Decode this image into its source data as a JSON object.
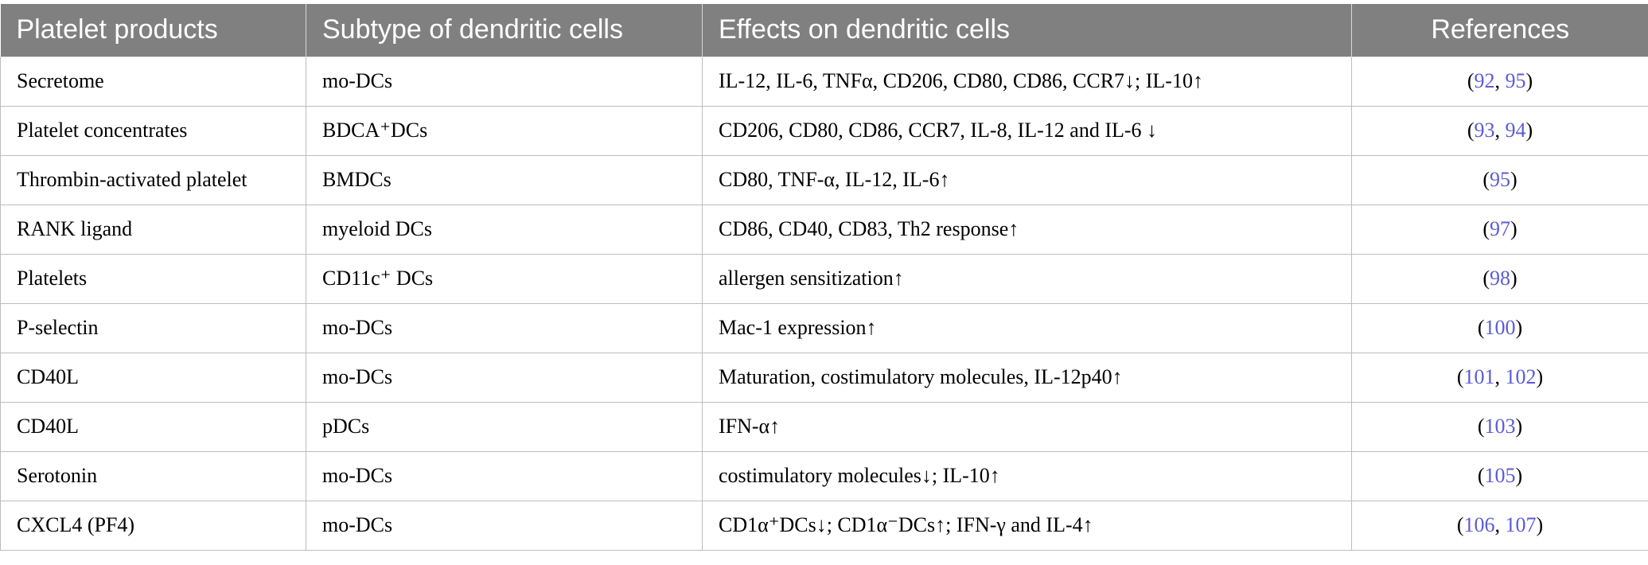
{
  "table": {
    "headers": [
      "Platelet products",
      "Subtype of dendritic cells",
      "Effects on dendritic cells",
      "References"
    ],
    "rows": [
      {
        "product": "Secretome",
        "subtype": "mo-DCs",
        "effects": "IL-12, IL-6, TNFα, CD206, CD80, CD86, CCR7↓; IL-10↑",
        "refs": [
          "92",
          "95"
        ]
      },
      {
        "product": "Platelet concentrates",
        "subtype": "BDCA⁺DCs",
        "effects": "CD206, CD80, CD86, CCR7, IL-8, IL-12 and IL-6 ↓",
        "refs": [
          "93",
          "94"
        ]
      },
      {
        "product": "Thrombin-activated platelet",
        "subtype": "BMDCs",
        "effects": "CD80, TNF-α, IL-12, IL-6↑",
        "refs": [
          "95"
        ]
      },
      {
        "product": "RANK ligand",
        "subtype": "myeloid DCs",
        "effects": "CD86, CD40, CD83, Th2 response↑",
        "refs": [
          "97"
        ]
      },
      {
        "product": "Platelets",
        "subtype": "CD11c⁺ DCs",
        "effects": "allergen sensitization↑",
        "refs": [
          "98"
        ]
      },
      {
        "product": "P-selectin",
        "subtype": "mo-DCs",
        "effects": "Mac-1 expression↑",
        "refs": [
          "100"
        ]
      },
      {
        "product": "CD40L",
        "subtype": "mo-DCs",
        "effects": "Maturation, costimulatory molecules, IL-12p40↑",
        "refs": [
          "101",
          "102"
        ]
      },
      {
        "product": "CD40L",
        "subtype": "pDCs",
        "effects": "IFN-α↑",
        "refs": [
          "103"
        ]
      },
      {
        "product": "Serotonin",
        "subtype": "mo-DCs",
        "effects": "costimulatory molecules↓; IL-10↑",
        "refs": [
          "105"
        ]
      },
      {
        "product": "CXCL4 (PF4)",
        "subtype": "mo-DCs",
        "effects": "CD1α⁺DCs↓; CD1α⁻DCs↑; IFN-γ and IL-4↑",
        "refs": [
          "106",
          "107"
        ]
      }
    ]
  },
  "colors": {
    "header_bg": "#808080",
    "header_text": "#ffffff",
    "link": "#5b5bd6",
    "border": "#bdbdbd"
  }
}
